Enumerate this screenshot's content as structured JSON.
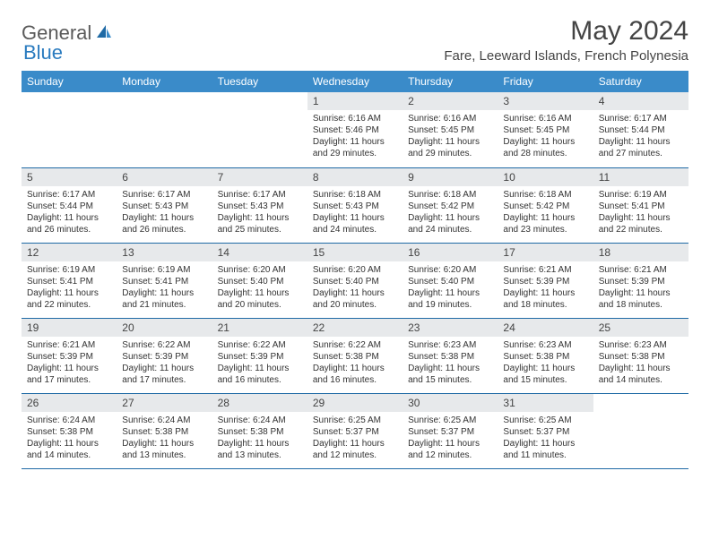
{
  "brand": {
    "part1": "General",
    "part2": "Blue"
  },
  "title": "May 2024",
  "location": "Fare, Leeward Islands, French Polynesia",
  "colors": {
    "header_bg": "#3a8bc9",
    "header_text": "#ffffff",
    "daynum_bg": "#e7e9eb",
    "row_border": "#1f6aa5",
    "brand_gray": "#5a5a5a",
    "brand_blue": "#2a7bbf"
  },
  "day_headers": [
    "Sunday",
    "Monday",
    "Tuesday",
    "Wednesday",
    "Thursday",
    "Friday",
    "Saturday"
  ],
  "weeks": [
    [
      {
        "n": "",
        "sunrise": "",
        "sunset": "",
        "daylight": ""
      },
      {
        "n": "",
        "sunrise": "",
        "sunset": "",
        "daylight": ""
      },
      {
        "n": "",
        "sunrise": "",
        "sunset": "",
        "daylight": ""
      },
      {
        "n": "1",
        "sunrise": "6:16 AM",
        "sunset": "5:46 PM",
        "daylight": "11 hours and 29 minutes."
      },
      {
        "n": "2",
        "sunrise": "6:16 AM",
        "sunset": "5:45 PM",
        "daylight": "11 hours and 29 minutes."
      },
      {
        "n": "3",
        "sunrise": "6:16 AM",
        "sunset": "5:45 PM",
        "daylight": "11 hours and 28 minutes."
      },
      {
        "n": "4",
        "sunrise": "6:17 AM",
        "sunset": "5:44 PM",
        "daylight": "11 hours and 27 minutes."
      }
    ],
    [
      {
        "n": "5",
        "sunrise": "6:17 AM",
        "sunset": "5:44 PM",
        "daylight": "11 hours and 26 minutes."
      },
      {
        "n": "6",
        "sunrise": "6:17 AM",
        "sunset": "5:43 PM",
        "daylight": "11 hours and 26 minutes."
      },
      {
        "n": "7",
        "sunrise": "6:17 AM",
        "sunset": "5:43 PM",
        "daylight": "11 hours and 25 minutes."
      },
      {
        "n": "8",
        "sunrise": "6:18 AM",
        "sunset": "5:43 PM",
        "daylight": "11 hours and 24 minutes."
      },
      {
        "n": "9",
        "sunrise": "6:18 AM",
        "sunset": "5:42 PM",
        "daylight": "11 hours and 24 minutes."
      },
      {
        "n": "10",
        "sunrise": "6:18 AM",
        "sunset": "5:42 PM",
        "daylight": "11 hours and 23 minutes."
      },
      {
        "n": "11",
        "sunrise": "6:19 AM",
        "sunset": "5:41 PM",
        "daylight": "11 hours and 22 minutes."
      }
    ],
    [
      {
        "n": "12",
        "sunrise": "6:19 AM",
        "sunset": "5:41 PM",
        "daylight": "11 hours and 22 minutes."
      },
      {
        "n": "13",
        "sunrise": "6:19 AM",
        "sunset": "5:41 PM",
        "daylight": "11 hours and 21 minutes."
      },
      {
        "n": "14",
        "sunrise": "6:20 AM",
        "sunset": "5:40 PM",
        "daylight": "11 hours and 20 minutes."
      },
      {
        "n": "15",
        "sunrise": "6:20 AM",
        "sunset": "5:40 PM",
        "daylight": "11 hours and 20 minutes."
      },
      {
        "n": "16",
        "sunrise": "6:20 AM",
        "sunset": "5:40 PM",
        "daylight": "11 hours and 19 minutes."
      },
      {
        "n": "17",
        "sunrise": "6:21 AM",
        "sunset": "5:39 PM",
        "daylight": "11 hours and 18 minutes."
      },
      {
        "n": "18",
        "sunrise": "6:21 AM",
        "sunset": "5:39 PM",
        "daylight": "11 hours and 18 minutes."
      }
    ],
    [
      {
        "n": "19",
        "sunrise": "6:21 AM",
        "sunset": "5:39 PM",
        "daylight": "11 hours and 17 minutes."
      },
      {
        "n": "20",
        "sunrise": "6:22 AM",
        "sunset": "5:39 PM",
        "daylight": "11 hours and 17 minutes."
      },
      {
        "n": "21",
        "sunrise": "6:22 AM",
        "sunset": "5:39 PM",
        "daylight": "11 hours and 16 minutes."
      },
      {
        "n": "22",
        "sunrise": "6:22 AM",
        "sunset": "5:38 PM",
        "daylight": "11 hours and 16 minutes."
      },
      {
        "n": "23",
        "sunrise": "6:23 AM",
        "sunset": "5:38 PM",
        "daylight": "11 hours and 15 minutes."
      },
      {
        "n": "24",
        "sunrise": "6:23 AM",
        "sunset": "5:38 PM",
        "daylight": "11 hours and 15 minutes."
      },
      {
        "n": "25",
        "sunrise": "6:23 AM",
        "sunset": "5:38 PM",
        "daylight": "11 hours and 14 minutes."
      }
    ],
    [
      {
        "n": "26",
        "sunrise": "6:24 AM",
        "sunset": "5:38 PM",
        "daylight": "11 hours and 14 minutes."
      },
      {
        "n": "27",
        "sunrise": "6:24 AM",
        "sunset": "5:38 PM",
        "daylight": "11 hours and 13 minutes."
      },
      {
        "n": "28",
        "sunrise": "6:24 AM",
        "sunset": "5:38 PM",
        "daylight": "11 hours and 13 minutes."
      },
      {
        "n": "29",
        "sunrise": "6:25 AM",
        "sunset": "5:37 PM",
        "daylight": "11 hours and 12 minutes."
      },
      {
        "n": "30",
        "sunrise": "6:25 AM",
        "sunset": "5:37 PM",
        "daylight": "11 hours and 12 minutes."
      },
      {
        "n": "31",
        "sunrise": "6:25 AM",
        "sunset": "5:37 PM",
        "daylight": "11 hours and 11 minutes."
      },
      {
        "n": "",
        "sunrise": "",
        "sunset": "",
        "daylight": ""
      }
    ]
  ],
  "labels": {
    "sunrise": "Sunrise:",
    "sunset": "Sunset:",
    "daylight": "Daylight:"
  }
}
